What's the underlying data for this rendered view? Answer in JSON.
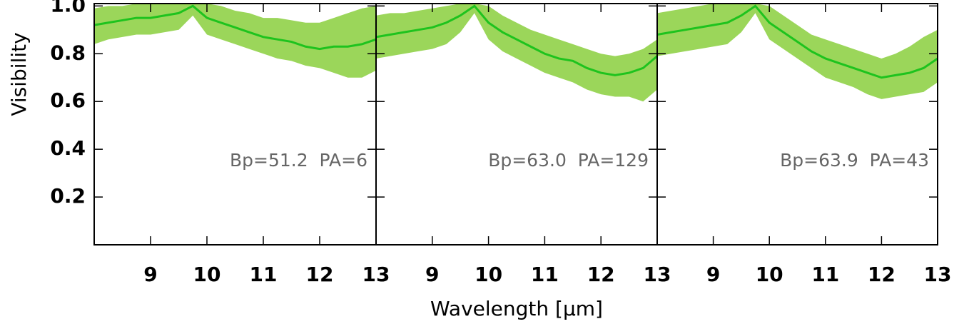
{
  "chart_data": [
    {
      "type": "line",
      "ylabel": "Visibility",
      "annotation": "Bp=51.2  PA=6",
      "ylim": [
        0,
        1.01
      ],
      "yticks": [
        0.2,
        0.4,
        0.6,
        0.8,
        {
          "value": 1,
          "label": "1.0"
        }
      ],
      "xlim": [
        8,
        13
      ],
      "xticks": [
        9,
        10,
        11,
        12,
        13
      ],
      "x": [
        8,
        8.25,
        8.5,
        8.75,
        9,
        9.25,
        9.5,
        9.75,
        10,
        10.25,
        10.5,
        10.75,
        11,
        11.25,
        11.5,
        11.75,
        12,
        12.25,
        12.5,
        12.75,
        13
      ],
      "series": [
        {
          "color": "#1ec31e",
          "band_color": "#9bd65a",
          "values": [
            0.92,
            0.93,
            0.94,
            0.95,
            0.95,
            0.96,
            0.97,
            1.0,
            0.95,
            0.93,
            0.91,
            0.89,
            0.87,
            0.86,
            0.85,
            0.83,
            0.82,
            0.83,
            0.83,
            0.84,
            0.86
          ],
          "upper": [
            0.99,
            1.0,
            1.0,
            1.01,
            1.01,
            1.01,
            1.01,
            1.01,
            1.01,
            1.0,
            0.98,
            0.97,
            0.95,
            0.95,
            0.94,
            0.93,
            0.93,
            0.95,
            0.97,
            0.99,
            1.0
          ],
          "lower": [
            0.84,
            0.86,
            0.87,
            0.88,
            0.88,
            0.89,
            0.9,
            0.96,
            0.88,
            0.86,
            0.84,
            0.82,
            0.8,
            0.78,
            0.77,
            0.75,
            0.74,
            0.72,
            0.7,
            0.7,
            0.73
          ]
        }
      ]
    },
    {
      "type": "line",
      "xlabel": "Wavelength [μm]",
      "annotation": "Bp=63.0  PA=129",
      "xlim": [
        8,
        13
      ],
      "xticks": [
        9,
        10,
        11,
        12,
        13
      ],
      "x": [
        8,
        8.25,
        8.5,
        8.75,
        9,
        9.25,
        9.5,
        9.75,
        10,
        10.25,
        10.5,
        10.75,
        11,
        11.25,
        11.5,
        11.75,
        12,
        12.25,
        12.5,
        12.75,
        13
      ],
      "series": [
        {
          "color": "#1ec31e",
          "band_color": "#9bd65a",
          "values": [
            0.87,
            0.88,
            0.89,
            0.9,
            0.91,
            0.93,
            0.96,
            1.0,
            0.93,
            0.89,
            0.86,
            0.83,
            0.8,
            0.78,
            0.77,
            0.74,
            0.72,
            0.71,
            0.72,
            0.74,
            0.79
          ],
          "upper": [
            0.96,
            0.97,
            0.97,
            0.98,
            0.99,
            1.0,
            1.01,
            1.01,
            1.0,
            0.96,
            0.93,
            0.9,
            0.88,
            0.86,
            0.84,
            0.82,
            0.8,
            0.79,
            0.8,
            0.82,
            0.86
          ],
          "lower": [
            0.78,
            0.79,
            0.8,
            0.81,
            0.82,
            0.84,
            0.89,
            0.97,
            0.86,
            0.81,
            0.78,
            0.75,
            0.72,
            0.7,
            0.68,
            0.65,
            0.63,
            0.62,
            0.62,
            0.6,
            0.65
          ]
        }
      ]
    },
    {
      "type": "line",
      "annotation": "Bp=63.9  PA=43",
      "xlim": [
        8,
        13
      ],
      "xticks": [
        9,
        10,
        11,
        12,
        13
      ],
      "x": [
        8,
        8.25,
        8.5,
        8.75,
        9,
        9.25,
        9.5,
        9.75,
        10,
        10.25,
        10.5,
        10.75,
        11,
        11.25,
        11.5,
        11.75,
        12,
        12.25,
        12.5,
        12.75,
        13
      ],
      "series": [
        {
          "color": "#1ec31e",
          "band_color": "#9bd65a",
          "values": [
            0.88,
            0.89,
            0.9,
            0.91,
            0.92,
            0.93,
            0.96,
            1.0,
            0.93,
            0.89,
            0.85,
            0.81,
            0.78,
            0.76,
            0.74,
            0.72,
            0.7,
            0.71,
            0.72,
            0.74,
            0.78
          ],
          "upper": [
            0.97,
            0.98,
            0.99,
            1.0,
            1.01,
            1.01,
            1.01,
            1.01,
            1.0,
            0.96,
            0.92,
            0.88,
            0.86,
            0.84,
            0.82,
            0.8,
            0.78,
            0.8,
            0.83,
            0.87,
            0.9
          ],
          "lower": [
            0.79,
            0.8,
            0.81,
            0.82,
            0.83,
            0.84,
            0.89,
            0.97,
            0.86,
            0.82,
            0.78,
            0.74,
            0.7,
            0.68,
            0.66,
            0.63,
            0.61,
            0.62,
            0.63,
            0.64,
            0.68
          ]
        }
      ]
    }
  ]
}
